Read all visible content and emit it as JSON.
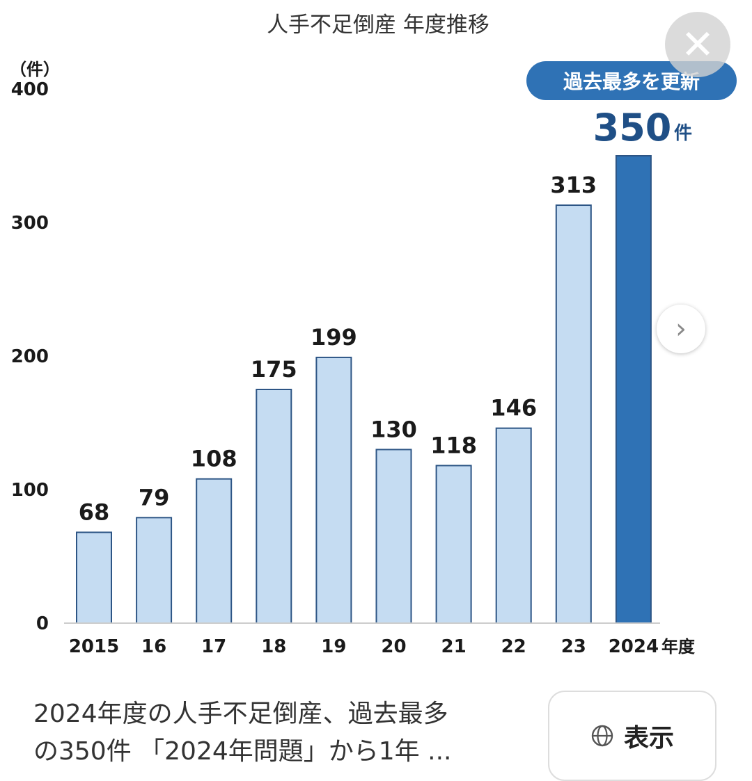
{
  "chart_data": {
    "type": "bar",
    "title": "人手不足倒産 年度推移",
    "y_unit": "（件）",
    "x_unit": "年度",
    "categories": [
      "2015",
      "16",
      "17",
      "18",
      "19",
      "20",
      "21",
      "22",
      "23",
      "2024"
    ],
    "values": [
      68,
      79,
      108,
      175,
      199,
      130,
      118,
      146,
      313,
      350
    ],
    "ylim": [
      0,
      400
    ],
    "yticks": [
      0,
      100,
      200,
      300,
      400
    ],
    "grid": false,
    "highlight": {
      "index": 9,
      "badge": "過去最多を更新",
      "value_text": "350",
      "unit_text": "件"
    },
    "colors": {
      "bar": "#c5dcf2",
      "bar_stroke": "#2d5585",
      "highlight_bar": "#2f72b5",
      "badge_bg": "#2f72b5"
    }
  },
  "caption": {
    "line1": "2024年度の人手不足倒産、過去最多",
    "line2": "の350件 「2024年問題」から1年 ..."
  },
  "buttons": {
    "show_label": "表示",
    "close_icon": "close-icon",
    "next_icon": "chevron-right-icon"
  }
}
